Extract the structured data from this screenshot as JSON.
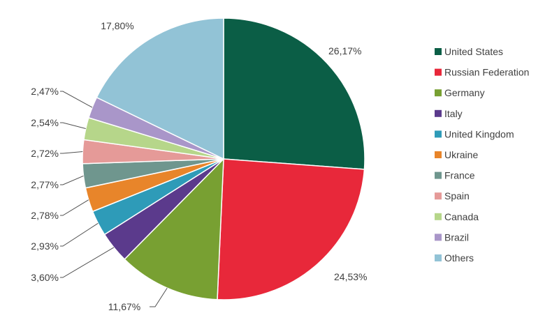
{
  "chart_data": {
    "type": "pie",
    "title": "",
    "legend_position": "right",
    "slices": [
      {
        "name": "United States",
        "value": 26.17,
        "label": "26,17%",
        "color": "#0b5e46"
      },
      {
        "name": "Russian Federation",
        "value": 24.53,
        "label": "24,53%",
        "color": "#e8283a"
      },
      {
        "name": "Germany",
        "value": 11.67,
        "label": "11,67%",
        "color": "#78a032"
      },
      {
        "name": "Italy",
        "value": 3.6,
        "label": "3,60%",
        "color": "#5b3a8c"
      },
      {
        "name": "United Kingdom",
        "value": 2.93,
        "label": "2,93%",
        "color": "#2e9bb8"
      },
      {
        "name": "Ukraine",
        "value": 2.78,
        "label": "2,78%",
        "color": "#e8852a"
      },
      {
        "name": "France",
        "value": 2.77,
        "label": "2,77%",
        "color": "#6f968e"
      },
      {
        "name": "Spain",
        "value": 2.72,
        "label": "2,72%",
        "color": "#e59a98"
      },
      {
        "name": "Canada",
        "value": 2.54,
        "label": "2,54%",
        "color": "#b6d68a"
      },
      {
        "name": "Brazil",
        "value": 2.47,
        "label": "2,47%",
        "color": "#a996c9"
      },
      {
        "name": "Others",
        "value": 17.8,
        "label": "17,80%",
        "color": "#92c3d6"
      }
    ]
  }
}
